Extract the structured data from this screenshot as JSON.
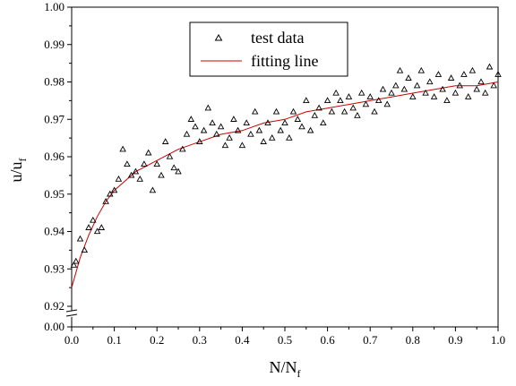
{
  "chart_data": {
    "type": "scatter",
    "xlabel": "N/N",
    "xlabel_sub": "f",
    "ylabel": "u/u",
    "ylabel_sub": "f",
    "xlim": [
      0.0,
      1.0
    ],
    "ylim": [
      0.92,
      1.0
    ],
    "y_axis_break": {
      "lower_tick": "0.00",
      "upper_range": [
        0.92,
        1.0
      ]
    },
    "x_ticks": [
      "0.0",
      "0.1",
      "0.2",
      "0.3",
      "0.4",
      "0.5",
      "0.6",
      "0.7",
      "0.8",
      "0.9",
      "1.0"
    ],
    "y_ticks": [
      "0.92",
      "0.93",
      "0.94",
      "0.95",
      "0.96",
      "0.97",
      "0.98",
      "0.99",
      "1.00"
    ],
    "y_ticks_bottom": [
      "0.00"
    ],
    "grid": false,
    "legend_position": "top-center",
    "colors": {
      "scatter": "#000000",
      "fit": "#cc0000"
    },
    "series": [
      {
        "name": "test data",
        "marker": "triangle-open",
        "x": [
          0.005,
          0.01,
          0.02,
          0.03,
          0.04,
          0.05,
          0.06,
          0.07,
          0.08,
          0.09,
          0.1,
          0.11,
          0.12,
          0.13,
          0.14,
          0.15,
          0.16,
          0.17,
          0.18,
          0.19,
          0.2,
          0.21,
          0.22,
          0.23,
          0.24,
          0.25,
          0.26,
          0.27,
          0.28,
          0.29,
          0.3,
          0.31,
          0.32,
          0.33,
          0.34,
          0.35,
          0.36,
          0.37,
          0.38,
          0.39,
          0.4,
          0.41,
          0.42,
          0.43,
          0.44,
          0.45,
          0.46,
          0.47,
          0.48,
          0.49,
          0.5,
          0.51,
          0.52,
          0.53,
          0.54,
          0.55,
          0.56,
          0.57,
          0.58,
          0.59,
          0.6,
          0.61,
          0.62,
          0.63,
          0.64,
          0.65,
          0.66,
          0.67,
          0.68,
          0.69,
          0.7,
          0.71,
          0.72,
          0.73,
          0.74,
          0.75,
          0.76,
          0.77,
          0.78,
          0.79,
          0.8,
          0.81,
          0.82,
          0.83,
          0.84,
          0.85,
          0.86,
          0.87,
          0.88,
          0.89,
          0.9,
          0.91,
          0.92,
          0.93,
          0.94,
          0.95,
          0.96,
          0.97,
          0.98,
          0.99,
          1.0
        ],
        "y": [
          0.931,
          0.932,
          0.938,
          0.935,
          0.941,
          0.943,
          0.94,
          0.941,
          0.948,
          0.95,
          0.951,
          0.954,
          0.962,
          0.958,
          0.955,
          0.956,
          0.954,
          0.958,
          0.961,
          0.951,
          0.958,
          0.955,
          0.964,
          0.96,
          0.957,
          0.956,
          0.962,
          0.966,
          0.97,
          0.968,
          0.964,
          0.967,
          0.973,
          0.969,
          0.966,
          0.968,
          0.963,
          0.965,
          0.97,
          0.967,
          0.963,
          0.969,
          0.966,
          0.972,
          0.967,
          0.964,
          0.969,
          0.965,
          0.972,
          0.967,
          0.969,
          0.965,
          0.972,
          0.97,
          0.968,
          0.975,
          0.967,
          0.971,
          0.973,
          0.969,
          0.975,
          0.972,
          0.977,
          0.975,
          0.972,
          0.976,
          0.973,
          0.971,
          0.977,
          0.974,
          0.976,
          0.972,
          0.975,
          0.978,
          0.974,
          0.977,
          0.979,
          0.983,
          0.978,
          0.981,
          0.976,
          0.979,
          0.983,
          0.977,
          0.98,
          0.976,
          0.982,
          0.978,
          0.975,
          0.981,
          0.977,
          0.979,
          0.982,
          0.976,
          0.983,
          0.978,
          0.98,
          0.977,
          0.984,
          0.979,
          0.982
        ]
      },
      {
        "name": "fitting line",
        "marker": "line",
        "x": [
          0.0,
          0.02,
          0.04,
          0.06,
          0.08,
          0.1,
          0.12,
          0.15,
          0.2,
          0.25,
          0.3,
          0.35,
          0.4,
          0.45,
          0.5,
          0.55,
          0.6,
          0.65,
          0.7,
          0.75,
          0.8,
          0.85,
          0.9,
          0.95,
          1.0
        ],
        "y": [
          0.925,
          0.933,
          0.939,
          0.944,
          0.948,
          0.951,
          0.953,
          0.956,
          0.959,
          0.962,
          0.964,
          0.966,
          0.967,
          0.969,
          0.97,
          0.972,
          0.973,
          0.974,
          0.975,
          0.976,
          0.977,
          0.978,
          0.979,
          0.979,
          0.98
        ]
      }
    ]
  }
}
